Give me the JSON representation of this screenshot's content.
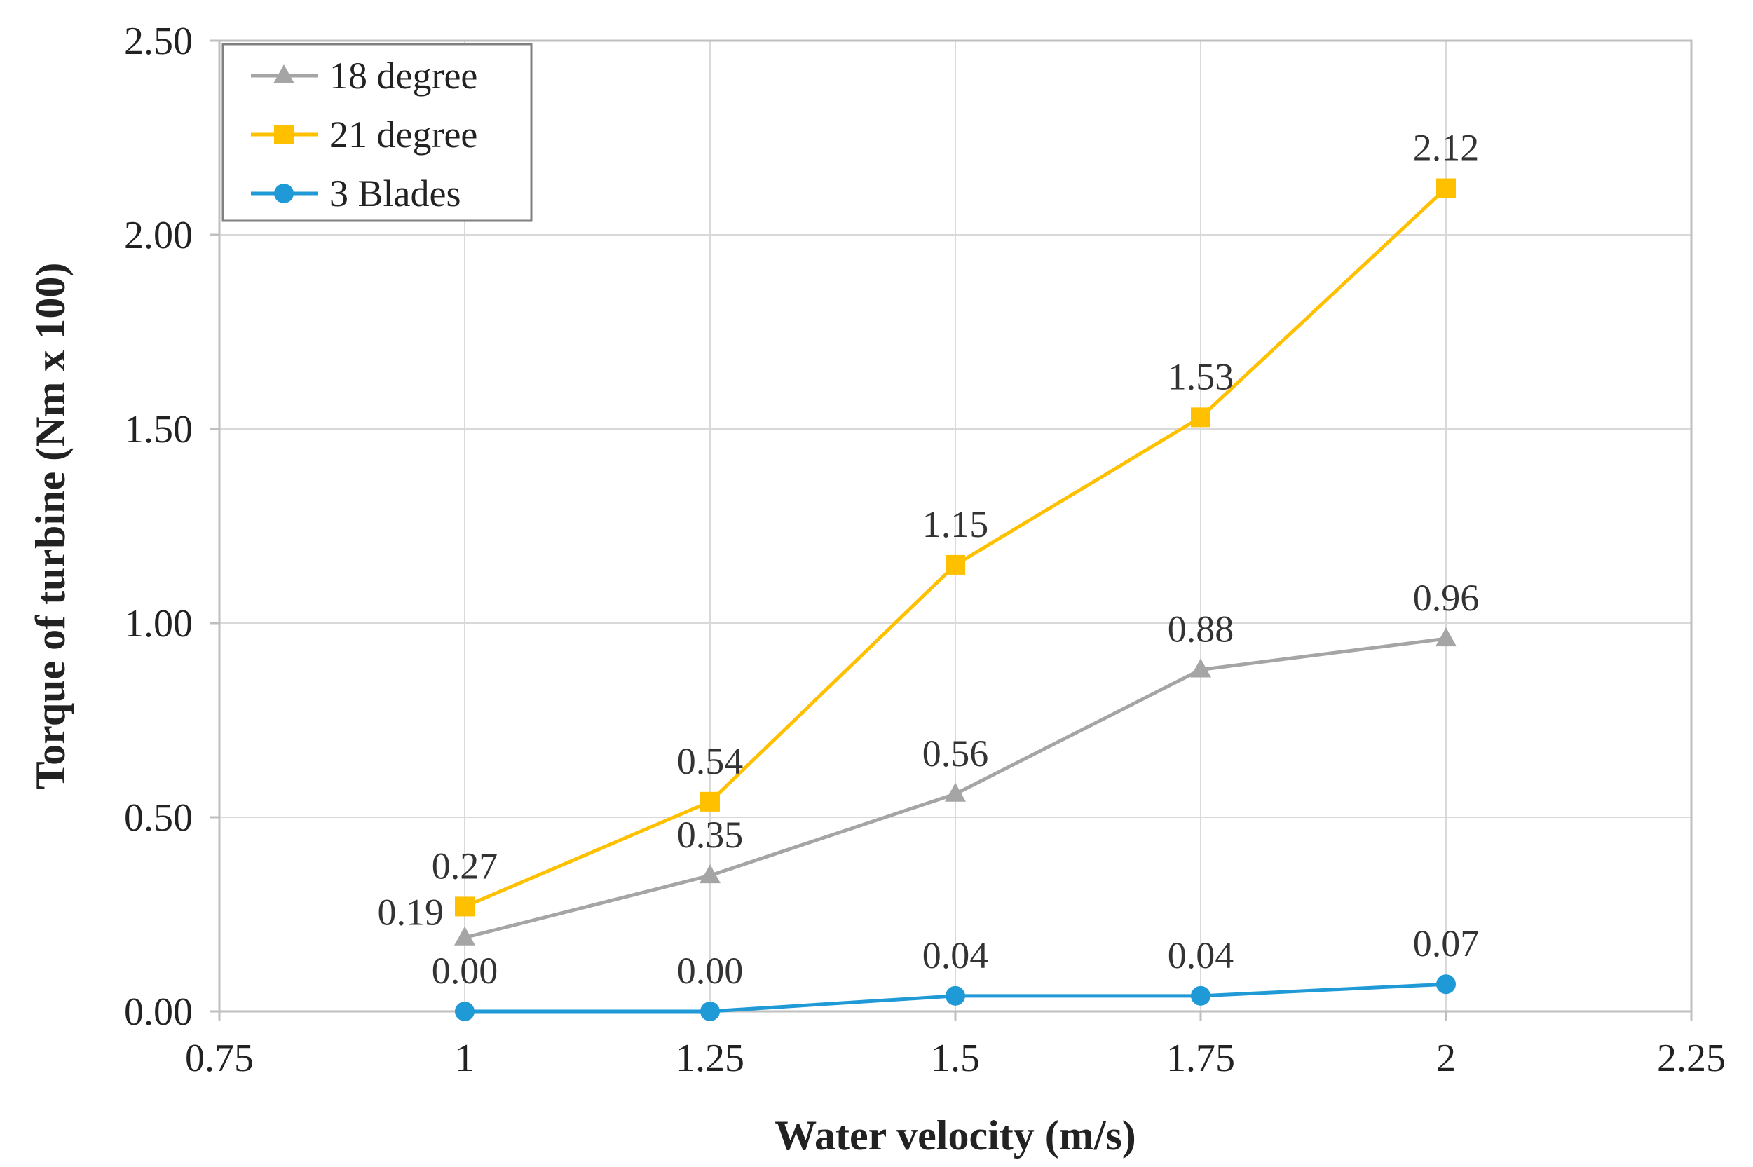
{
  "chart_data": {
    "type": "scatter",
    "title": "",
    "xlabel": "Water velocity (m/s)",
    "ylabel": "Torque of turbine (Nm x 100)",
    "xlim": [
      0.75,
      2.25
    ],
    "ylim": [
      0,
      2.5
    ],
    "x_ticks": [
      0.75,
      1,
      1.25,
      1.5,
      1.75,
      2,
      2.25
    ],
    "x_tick_labels": [
      "0.75",
      "1",
      "1.25",
      "1.5",
      "1.75",
      "2",
      "2.25"
    ],
    "y_ticks": [
      0,
      0.5,
      1,
      1.5,
      2,
      2.5
    ],
    "y_tick_labels": [
      "0.00",
      "0.50",
      "1.00",
      "1.50",
      "2.00",
      "2.50"
    ],
    "grid": true,
    "legend_position": "top-left",
    "series": [
      {
        "name": "18 degree",
        "color": "#a5a5a5",
        "marker": "triangle",
        "x": [
          1,
          1.25,
          1.5,
          1.75,
          2
        ],
        "values": [
          0.19,
          0.35,
          0.56,
          0.88,
          0.96
        ],
        "labels": [
          "0.19",
          "0.35",
          "0.56",
          "0.88",
          "0.96"
        ],
        "label_positions": [
          "left",
          "above",
          "above",
          "above",
          "above"
        ]
      },
      {
        "name": "21 degree",
        "color": "#ffc000",
        "marker": "square",
        "x": [
          1,
          1.25,
          1.5,
          1.75,
          2
        ],
        "values": [
          0.27,
          0.54,
          1.15,
          1.53,
          2.12
        ],
        "labels": [
          "0.27",
          "0.54",
          "1.15",
          "1.53",
          "2.12"
        ],
        "label_positions": [
          "above",
          "above",
          "above",
          "above",
          "above"
        ]
      },
      {
        "name": "3 Blades",
        "color": "#1f9ad6",
        "marker": "circle",
        "x": [
          1,
          1.25,
          1.5,
          1.75,
          2
        ],
        "values": [
          0.0,
          0.0,
          0.04,
          0.04,
          0.07
        ],
        "labels": [
          "0.00",
          "0.00",
          "0.04",
          "0.04",
          "0.07"
        ],
        "label_positions": [
          "above",
          "above",
          "above",
          "above",
          "above"
        ]
      }
    ]
  }
}
